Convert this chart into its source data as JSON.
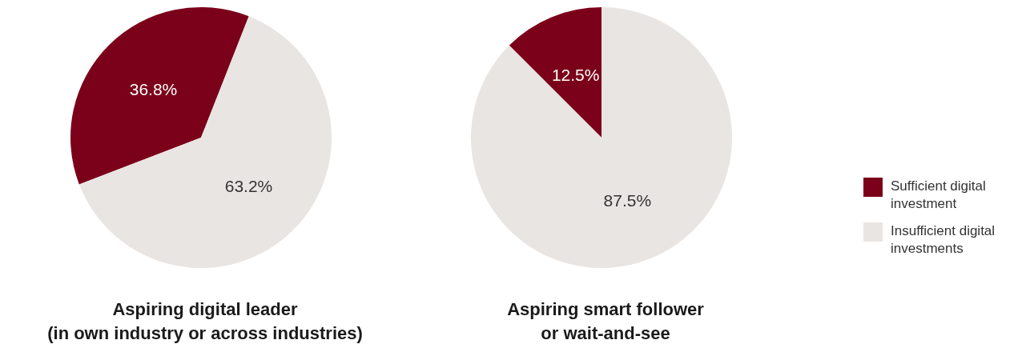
{
  "chart_data": [
    {
      "type": "pie",
      "title": "Aspiring digital leader\n(in own industry or across industries)",
      "values": [
        36.8,
        63.2
      ],
      "colors": [
        "#7b0019",
        "#e9e5e2"
      ],
      "value_labels": [
        "36.8%",
        "63.2%"
      ],
      "legend": false
    },
    {
      "type": "pie",
      "title": "Aspiring smart follower\nor wait-and-see",
      "categories": [
        "Sufficient digital investment",
        "Insufficient digital investments"
      ],
      "values": [
        12.5,
        87.5
      ],
      "colors": [
        "#7b0019",
        "#e9e5e2"
      ],
      "value_labels": [
        "12.5%",
        "87.5%"
      ],
      "legend": "right"
    }
  ]
}
